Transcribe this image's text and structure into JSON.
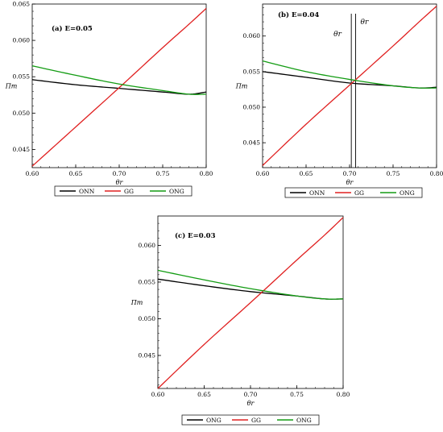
{
  "colors": {
    "ONN": "#000000",
    "GG": "#e02020",
    "ONG": "#139c13"
  },
  "chart_data": [
    {
      "type": "line",
      "panel_label": "(a) E=0.05",
      "xlabel": "θr",
      "ylabel": "Πm",
      "xlim": [
        0.6,
        0.8
      ],
      "ylim": [
        0.0425,
        0.065
      ],
      "x_ticks": [
        "0.60",
        "0.65",
        "0.70",
        "0.75",
        "0.80"
      ],
      "y_ticks": [
        "0.045",
        "0.050",
        "0.055",
        "0.060",
        "0.065"
      ],
      "x": [
        0.6,
        0.65,
        0.7,
        0.75,
        0.78,
        0.8
      ],
      "series": [
        {
          "name": "ONN",
          "values": [
            0.0546,
            0.0539,
            0.0534,
            0.0529,
            0.0526,
            0.0529
          ]
        },
        {
          "name": "GG",
          "values": [
            0.0427,
            0.0481,
            0.0535,
            0.059,
            0.0622,
            0.0644
          ]
        },
        {
          "name": "ONG",
          "values": [
            0.0565,
            0.0552,
            0.054,
            0.0531,
            0.0526,
            0.0526
          ]
        }
      ],
      "legend": [
        "ONN",
        "GG",
        "ONG"
      ],
      "theta_annotation": {
        "labels": [],
        "x": []
      }
    },
    {
      "type": "line",
      "panel_label": "(b) E=0.04",
      "xlabel": "θr",
      "ylabel": "Πm",
      "xlim": [
        0.6,
        0.8
      ],
      "ylim": [
        0.0415,
        0.0645
      ],
      "x_ticks": [
        "0.60",
        "0.65",
        "0.70",
        "0.75",
        "0.80"
      ],
      "y_ticks": [
        "0.045",
        "0.050",
        "0.055",
        "0.060"
      ],
      "x": [
        0.6,
        0.65,
        0.7,
        0.75,
        0.78,
        0.8
      ],
      "series": [
        {
          "name": "ONN",
          "values": [
            0.055,
            0.0542,
            0.0534,
            0.053,
            0.0527,
            0.0528
          ]
        },
        {
          "name": "GG",
          "values": [
            0.0418,
            0.0476,
            0.0531,
            0.0586,
            0.062,
            0.0642
          ]
        },
        {
          "name": "ONG",
          "values": [
            0.0565,
            0.055,
            0.0539,
            0.053,
            0.0527,
            0.0527
          ]
        }
      ],
      "legend": [
        "ONN",
        "GG",
        "ONG"
      ],
      "theta_annotation": {
        "labels": [
          "θr",
          "θr"
        ],
        "x": [
          0.702,
          0.707
        ]
      }
    },
    {
      "type": "line",
      "panel_label": "(c) E=0.03",
      "xlabel": "θr",
      "ylabel": "Πm",
      "xlim": [
        0.6,
        0.8
      ],
      "ylim": [
        0.0405,
        0.064
      ],
      "x_ticks": [
        "0.60",
        "0.65",
        "0.70",
        "0.75",
        "0.80"
      ],
      "y_ticks": [
        "0.045",
        "0.050",
        "0.055",
        "0.060"
      ],
      "x": [
        0.6,
        0.65,
        0.7,
        0.75,
        0.78,
        0.8
      ],
      "series": [
        {
          "name": "ONG",
          "values": [
            0.0554,
            0.0545,
            0.0537,
            0.0531,
            0.0527,
            0.0527
          ]
        },
        {
          "name": "GG",
          "values": [
            0.0405,
            0.0465,
            0.0522,
            0.058,
            0.0614,
            0.0638
          ]
        },
        {
          "name": "ONG",
          "values": [
            0.0566,
            0.0553,
            0.0541,
            0.0531,
            0.0527,
            0.0527
          ]
        }
      ],
      "legend": [
        "ONG",
        "GG",
        "ONG"
      ],
      "theta_annotation": {
        "labels": [],
        "x": []
      }
    }
  ]
}
